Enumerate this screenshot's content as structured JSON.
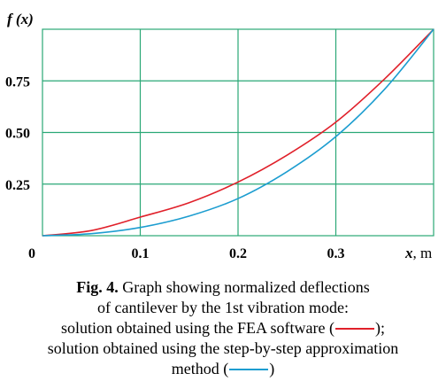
{
  "chart_data": {
    "type": "line",
    "ylabel": "f (x)",
    "xlabel_var": "x",
    "xlabel_unit": "m",
    "x_ticks": [
      "0",
      "0.1",
      "0.2",
      "0.3"
    ],
    "y_ticks": [
      "0.25",
      "0.50",
      "0.75"
    ],
    "xlim": [
      0,
      0.4
    ],
    "ylim": [
      0,
      1
    ],
    "grid": true,
    "grid_color": "#2aa876",
    "series": [
      {
        "color": "#e0202a",
        "x": [
          0,
          0.05,
          0.1,
          0.15,
          0.2,
          0.25,
          0.3,
          0.35,
          0.4
        ],
        "y": [
          0,
          0.025,
          0.09,
          0.16,
          0.26,
          0.39,
          0.55,
          0.76,
          1.0
        ]
      },
      {
        "color": "#1c9dd0",
        "x": [
          0,
          0.05,
          0.1,
          0.15,
          0.2,
          0.25,
          0.3,
          0.35,
          0.4
        ],
        "y": [
          0,
          0.01,
          0.04,
          0.095,
          0.18,
          0.31,
          0.48,
          0.71,
          1.0
        ]
      }
    ]
  },
  "caption": {
    "label": "Fig. 4.",
    "line1": "Graph showing normalized deflections",
    "line2": "of cantilever by the 1st vibration mode:",
    "line3_before": "solution obtained using the FEA software (",
    "line3_after": ");",
    "line4": "solution obtained using the step-by-step approximation",
    "line5_before": "method (",
    "line5_after": ")"
  }
}
